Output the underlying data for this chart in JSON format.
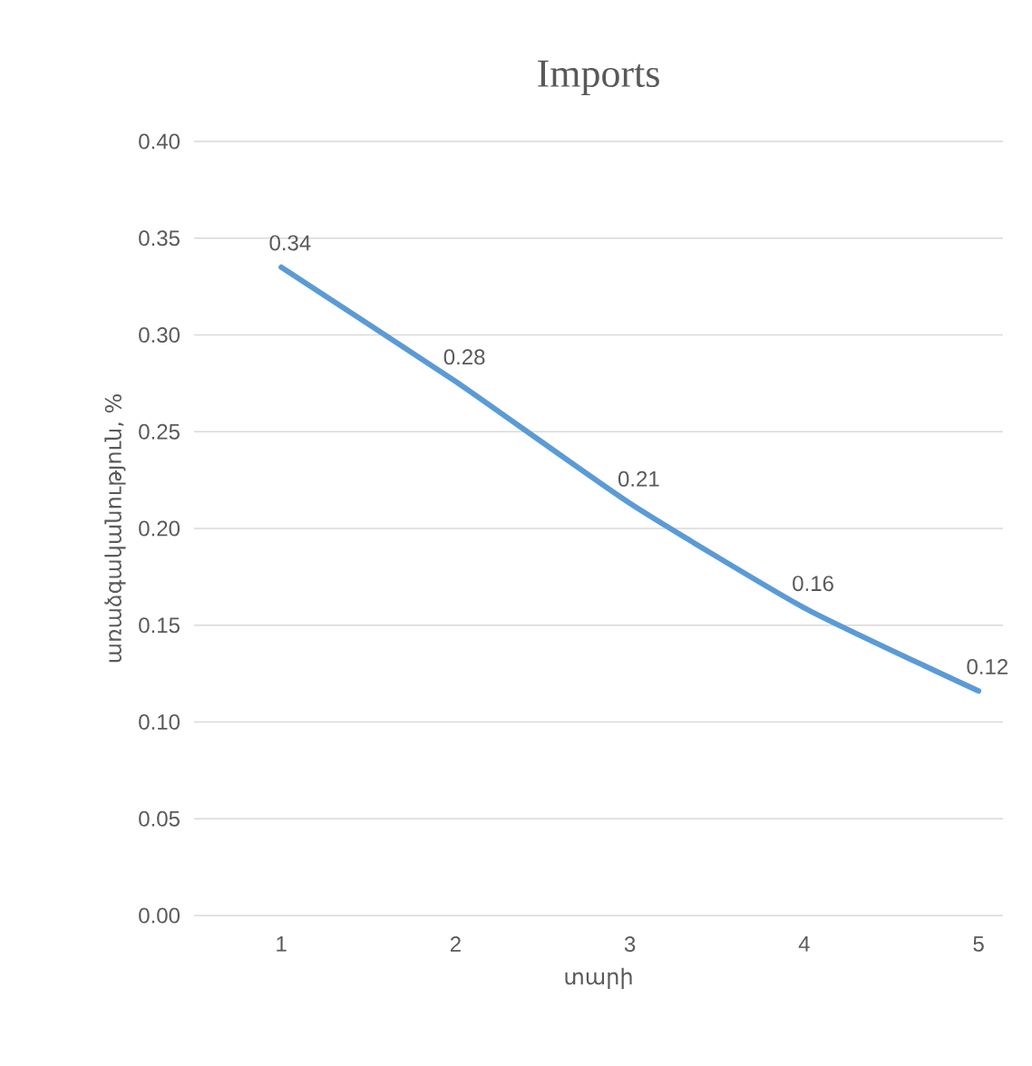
{
  "chart_data": {
    "type": "line",
    "title": "Imports",
    "xlabel": "տարի",
    "ylabel": "առաձգականություն, %",
    "categories": [
      "1",
      "2",
      "3",
      "4",
      "5"
    ],
    "series": [
      {
        "color": "#5b9bd5",
        "values": [
          0.335,
          0.276,
          0.213,
          0.159,
          0.116
        ],
        "value_labels": [
          "0.34",
          "0.28",
          "0.21",
          "0.16",
          "0.12"
        ]
      }
    ],
    "ylim": [
      0,
      0.4
    ],
    "yticks": [
      {
        "value": 0,
        "label": "0.00"
      },
      {
        "value": 0.05,
        "label": "0.05"
      },
      {
        "value": 0.1,
        "label": "0.10"
      },
      {
        "value": 0.15,
        "label": "0.15"
      },
      {
        "value": 0.2,
        "label": "0.20"
      },
      {
        "value": 0.25,
        "label": "0.25"
      },
      {
        "value": 0.3,
        "label": "0.30"
      },
      {
        "value": 0.35,
        "label": "0.35"
      },
      {
        "value": 0.4,
        "label": "0.40"
      }
    ],
    "grid": "y",
    "legend": false
  }
}
